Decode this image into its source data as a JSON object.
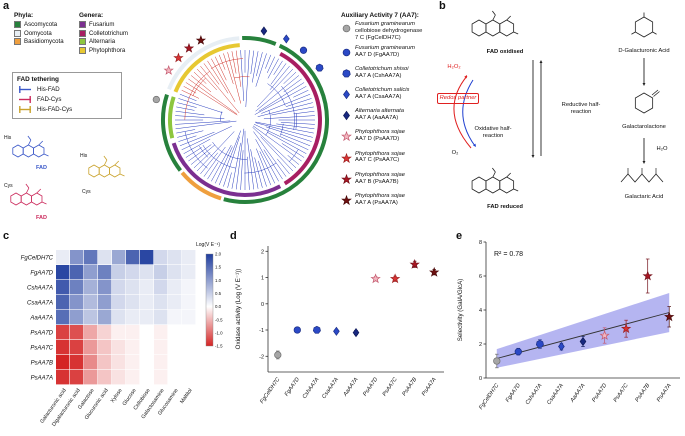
{
  "figure": {
    "panel_labels": {
      "a": "a",
      "b": "b",
      "c": "c",
      "d": "d",
      "e": "e"
    }
  },
  "panel_a": {
    "phyla": {
      "title": "Phyla:",
      "items": [
        {
          "label": "Ascomycota",
          "color": "#27813c"
        },
        {
          "label": "Oomycota",
          "color": "#e7eef4"
        },
        {
          "label": "Basidiomycota",
          "color": "#ef9f3e"
        }
      ]
    },
    "genera": {
      "title": "Genera:",
      "items": [
        {
          "label": "Fusarium",
          "color": "#7b2f90"
        },
        {
          "label": "Colletotrichum",
          "color": "#a81e62"
        },
        {
          "label": "Alternaria",
          "color": "#8dc63f"
        },
        {
          "label": "Phytophthora",
          "color": "#e7c832"
        }
      ]
    },
    "fad_tethering": {
      "title": "FAD tethering",
      "items": [
        {
          "label": "His-FAD",
          "color": "#3a57c8"
        },
        {
          "label": "FAD-Cys",
          "color": "#cb2a5c"
        },
        {
          "label": "His-FAD-Cys",
          "color": "#c9a22c"
        }
      ]
    },
    "structure_labels": {
      "his1": "His",
      "fad1": "FAD",
      "cys1": "Cys",
      "fad2": "FAD",
      "his2": "His",
      "cys2": "Cys"
    },
    "tree_colors": {
      "red_branch": "#d0342c",
      "blue_branch": "#2b3fc0"
    },
    "aa7": {
      "title": "Auxiliary Activity 7 (AA7):",
      "items": [
        {
          "symbol": "circle",
          "color": "#a6a6a6",
          "stroke": "#6f6f6f",
          "line1": "Fusarium graminearum",
          "line2": "cellobiose dehydrogenase",
          "line3": "7 C (FgCelDH7C)",
          "tree_angle": 283
        },
        {
          "symbol": "circle",
          "color": "#2b49c6",
          "stroke": "#1c2f86",
          "line1": "Fusarium graminearum",
          "line2": "AA7 D (FgAA7D)",
          "tree_angle": 40
        },
        {
          "symbol": "heptagon",
          "color": "#2b49c6",
          "stroke": "#1c2f86",
          "line1": "Colletotrichum shisoi",
          "line2": "AA7 A (CshAA7A)",
          "tree_angle": 55
        },
        {
          "symbol": "diamond",
          "color": "#2b49c6",
          "stroke": "#1c2f86",
          "line1": "Colletotrichum salicis",
          "line2": "AA7 A (CsaAA7A)",
          "tree_angle": 27
        },
        {
          "symbol": "diamond",
          "color": "#18287f",
          "stroke": "#101b59",
          "line1": "Alternaria alternata",
          "line2": "AA7 A (AaAA7A)",
          "tree_angle": 12
        },
        {
          "symbol": "star",
          "color": "#f2b6c0",
          "stroke": "#c4596e",
          "line1": "Phytophthora sojae",
          "line2": "AA7 D (PsAA7D)",
          "tree_angle": 303
        },
        {
          "symbol": "star",
          "color": "#d93434",
          "stroke": "#9c1f1f",
          "line1": "Phytophthora sojae",
          "line2": "AA7 C (PsAA7C)",
          "tree_angle": 313
        },
        {
          "symbol": "star",
          "color": "#a81622",
          "stroke": "#73101a",
          "line1": "Phytophthora sojae",
          "line2": "AA7 B (PsAA7B)",
          "tree_angle": 322
        },
        {
          "symbol": "star",
          "color": "#6e1010",
          "stroke": "#4a0a0a",
          "line1": "Phytophthora sojae",
          "line2": "AA7 A (PsAA7A)",
          "tree_angle": 331
        }
      ]
    }
  },
  "panel_b": {
    "fad_oxidised": "FAD oxidised",
    "fad_reduced": "FAD reduced",
    "h2o2": "H₂O₂",
    "o2": "O₂",
    "redox_partner": "Redox partner",
    "oxidative": "Oxidative half-reaction",
    "reductive": "Reductive half-reaction",
    "d_galacturonic": "D-Galacturonic Acid",
    "galactarolactone": "Galactarolactone",
    "h2o": "H₂O",
    "galactaric": "Galactaric Acid"
  },
  "chart_data": [
    {
      "id": "substrate-heatmap",
      "type": "heatmap",
      "rows": [
        "FgCelDH7C",
        "FgAA7D",
        "CshAA7A",
        "CsaAA7A",
        "AaAA7A",
        "PsAA7D",
        "PsAA7C",
        "PsAA7B",
        "PsAA7A"
      ],
      "columns": [
        "Galacturonic acid",
        "Digalacturonic acid",
        "Galactose",
        "Glucuronic acid",
        "Xylose",
        "Glucose",
        "Cellobiose",
        "Galactosamine",
        "Glucosamine",
        "Maltitol"
      ],
      "values": [
        [
          0.2,
          1.1,
          1.4,
          0.3,
          0.9,
          1.6,
          1.9,
          0.4,
          0.3,
          0.2
        ],
        [
          1.9,
          1.6,
          1.0,
          1.3,
          0.5,
          0.4,
          0.3,
          0.5,
          0.3,
          0.2
        ],
        [
          1.7,
          1.3,
          0.8,
          1.1,
          0.4,
          0.3,
          0.2,
          0.4,
          0.2,
          0.1
        ],
        [
          1.6,
          1.1,
          0.7,
          1.0,
          0.4,
          0.3,
          0.2,
          0.3,
          0.2,
          0.1
        ],
        [
          1.5,
          1.0,
          0.6,
          0.9,
          0.3,
          0.2,
          0.2,
          0.3,
          0.1,
          0.1
        ],
        [
          -1.3,
          -1.2,
          -0.6,
          -0.3,
          -0.1,
          -0.1,
          0.0,
          -0.1,
          0.0,
          0.0
        ],
        [
          -1.4,
          -1.3,
          -0.7,
          -0.4,
          -0.2,
          -0.1,
          0.0,
          -0.1,
          0.0,
          0.0
        ],
        [
          -1.5,
          -1.4,
          -0.8,
          -0.4,
          -0.2,
          -0.1,
          0.0,
          -0.1,
          0.0,
          0.0
        ],
        [
          -1.4,
          -1.3,
          -0.7,
          -0.4,
          -0.2,
          -0.1,
          0.0,
          -0.1,
          0.0,
          0.0
        ]
      ],
      "colorbar": {
        "label": "Log(V E⁻¹)",
        "ticks": [
          2.0,
          1.5,
          1.0,
          0.5,
          0.0,
          -0.5,
          -1.0,
          -1.5
        ],
        "domain": [
          -1.5,
          2.0
        ],
        "max_color": "#1f3d9e",
        "min_color": "#d42424"
      }
    },
    {
      "id": "oxidase-activity",
      "type": "scatter",
      "categories": [
        "FgCelDH7C",
        "FgAA7D",
        "CshAA7A",
        "CsaAA7A",
        "AaAA7A",
        "PsAA7D",
        "PsAA7C",
        "PsAA7B",
        "PsAA7A"
      ],
      "values": [
        -1.95,
        -1.0,
        -1.0,
        -1.05,
        -1.1,
        0.95,
        0.95,
        1.5,
        1.2
      ],
      "errors": [
        0.15,
        0.06,
        0.06,
        0.06,
        0.08,
        0.08,
        0.1,
        0.12,
        0.1
      ],
      "symbols": [
        "circle",
        "circle",
        "heptagon",
        "diamond",
        "diamond",
        "star",
        "star",
        "star",
        "star"
      ],
      "colors": [
        "#a6a6a6",
        "#2b49c6",
        "#2b49c6",
        "#2b49c6",
        "#18287f",
        "#f2b6c0",
        "#d93434",
        "#a81622",
        "#6e1010"
      ],
      "strokes": [
        "#6f6f6f",
        "#1c2f86",
        "#1c2f86",
        "#1c2f86",
        "#101b59",
        "#c4596e",
        "#9c1f1f",
        "#73101a",
        "#4a0a0a"
      ],
      "ylabel": "Oxidase activity (Log (V E⁻¹))",
      "ylim": [
        -2.6,
        2.2
      ],
      "yticks": [
        -2,
        -1,
        0,
        1,
        2
      ]
    },
    {
      "id": "selectivity",
      "type": "scatter",
      "categories": [
        "FgCelDH7C",
        "FgAA7D",
        "CshAA7A",
        "CsaAA7A",
        "AaAA7A",
        "PsAA7D",
        "PsAA7C",
        "PsAA7B",
        "PsAA7A"
      ],
      "values": [
        1.0,
        1.55,
        2.0,
        1.85,
        2.15,
        2.5,
        2.9,
        6.0,
        3.6
      ],
      "errors": [
        0.4,
        0.2,
        0.25,
        0.2,
        0.3,
        0.45,
        0.5,
        1.0,
        0.6
      ],
      "symbols": [
        "circle",
        "circle",
        "heptagon",
        "diamond",
        "diamond",
        "star",
        "star",
        "star",
        "star"
      ],
      "colors": [
        "#a6a6a6",
        "#2b49c6",
        "#2b49c6",
        "#2b49c6",
        "#18287f",
        "#f2b6c0",
        "#d93434",
        "#a81622",
        "#6e1010"
      ],
      "strokes": [
        "#6f6f6f",
        "#1c2f86",
        "#1c2f86",
        "#1c2f86",
        "#101b59",
        "#c4596e",
        "#9c1f1f",
        "#73101a",
        "#4a0a0a"
      ],
      "ylabel": "Selectivity (GalA/GlcA)",
      "ylim": [
        0,
        8
      ],
      "yticks": [
        0,
        2,
        4,
        6,
        8
      ],
      "annotation": "R² = 0.78",
      "regression": {
        "y_start": 1.15,
        "y_end": 3.85,
        "band_start": 0.55,
        "band_end": 1.15,
        "band_color": "#5a5ae0",
        "line_color": "#333333"
      }
    }
  ]
}
